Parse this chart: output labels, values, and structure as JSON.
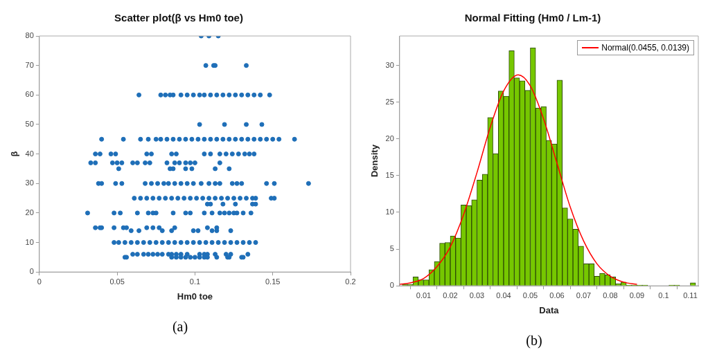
{
  "chart_data": [
    {
      "type": "scatter",
      "title": "Scatter plot(β vs Hm0 toe)",
      "xlabel": "Hm0 toe",
      "ylabel": "β",
      "annotations": [
        "(a)"
      ],
      "color": "#1f6fb8",
      "marker": "circle",
      "xlim": [
        0,
        0.2
      ],
      "xticks": [
        0,
        0.05,
        0.1,
        0.15,
        0.2
      ],
      "ylim": [
        0,
        80
      ],
      "yticks": [
        0,
        10,
        20,
        30,
        40,
        50,
        60,
        70,
        80
      ],
      "x": [
        0.104,
        0.109,
        0.115,
        0.107,
        0.112,
        0.113,
        0.133,
        0.064,
        0.078,
        0.081,
        0.084,
        0.086,
        0.091,
        0.095,
        0.099,
        0.103,
        0.106,
        0.11,
        0.114,
        0.118,
        0.122,
        0.126,
        0.13,
        0.134,
        0.138,
        0.142,
        0.148,
        0.103,
        0.119,
        0.133,
        0.143,
        0.04,
        0.054,
        0.065,
        0.07,
        0.075,
        0.078,
        0.082,
        0.086,
        0.09,
        0.094,
        0.098,
        0.102,
        0.106,
        0.11,
        0.114,
        0.118,
        0.122,
        0.126,
        0.13,
        0.134,
        0.138,
        0.142,
        0.146,
        0.15,
        0.154,
        0.164,
        0.036,
        0.039,
        0.046,
        0.049,
        0.069,
        0.072,
        0.085,
        0.088,
        0.106,
        0.11,
        0.116,
        0.12,
        0.124,
        0.128,
        0.132,
        0.135,
        0.138,
        0.033,
        0.036,
        0.047,
        0.05,
        0.053,
        0.06,
        0.063,
        0.068,
        0.071,
        0.082,
        0.087,
        0.09,
        0.094,
        0.097,
        0.1,
        0.116,
        0.051,
        0.084,
        0.086,
        0.094,
        0.098,
        0.113,
        0.122,
        0.038,
        0.04,
        0.049,
        0.053,
        0.068,
        0.072,
        0.076,
        0.08,
        0.083,
        0.087,
        0.091,
        0.095,
        0.099,
        0.104,
        0.109,
        0.113,
        0.116,
        0.124,
        0.127,
        0.13,
        0.146,
        0.151,
        0.173,
        0.061,
        0.065,
        0.069,
        0.073,
        0.077,
        0.081,
        0.085,
        0.089,
        0.093,
        0.097,
        0.101,
        0.105,
        0.109,
        0.113,
        0.117,
        0.121,
        0.125,
        0.129,
        0.133,
        0.137,
        0.139,
        0.149,
        0.151,
        0.108,
        0.11,
        0.118,
        0.126,
        0.137,
        0.139,
        0.031,
        0.048,
        0.052,
        0.063,
        0.07,
        0.073,
        0.075,
        0.086,
        0.094,
        0.097,
        0.106,
        0.111,
        0.116,
        0.119,
        0.122,
        0.125,
        0.127,
        0.131,
        0.136,
        0.036,
        0.039,
        0.04,
        0.048,
        0.054,
        0.056,
        0.069,
        0.073,
        0.077,
        0.087,
        0.108,
        0.114,
        0.059,
        0.064,
        0.079,
        0.085,
        0.099,
        0.102,
        0.111,
        0.114,
        0.123,
        0.048,
        0.051,
        0.055,
        0.059,
        0.063,
        0.067,
        0.071,
        0.075,
        0.079,
        0.083,
        0.087,
        0.091,
        0.095,
        0.099,
        0.103,
        0.107,
        0.111,
        0.115,
        0.119,
        0.123,
        0.127,
        0.131,
        0.135,
        0.139,
        0.06,
        0.063,
        0.067,
        0.07,
        0.073,
        0.076,
        0.079,
        0.083,
        0.085,
        0.088,
        0.091,
        0.095,
        0.103,
        0.106,
        0.108,
        0.113,
        0.12,
        0.123,
        0.134,
        0.055,
        0.056,
        0.085,
        0.088,
        0.091,
        0.094,
        0.097,
        0.1,
        0.103,
        0.106,
        0.108,
        0.114,
        0.121,
        0.122,
        0.13,
        0.131
      ],
      "values": [
        80,
        80,
        80,
        70,
        70,
        70,
        70,
        60,
        60,
        60,
        60,
        60,
        60,
        60,
        60,
        60,
        60,
        60,
        60,
        60,
        60,
        60,
        60,
        60,
        60,
        60,
        60,
        50,
        50,
        50,
        50,
        45,
        45,
        45,
        45,
        45,
        45,
        45,
        45,
        45,
        45,
        45,
        45,
        45,
        45,
        45,
        45,
        45,
        45,
        45,
        45,
        45,
        45,
        45,
        45,
        45,
        45,
        40,
        40,
        40,
        40,
        40,
        40,
        40,
        40,
        40,
        40,
        40,
        40,
        40,
        40,
        40,
        40,
        40,
        37,
        37,
        37,
        37,
        37,
        37,
        37,
        37,
        37,
        37,
        37,
        37,
        37,
        37,
        37,
        37,
        35,
        35,
        35,
        35,
        35,
        35,
        35,
        30,
        30,
        30,
        30,
        30,
        30,
        30,
        30,
        30,
        30,
        30,
        30,
        30,
        30,
        30,
        30,
        30,
        30,
        30,
        30,
        30,
        30,
        30,
        25,
        25,
        25,
        25,
        25,
        25,
        25,
        25,
        25,
        25,
        25,
        25,
        25,
        25,
        25,
        25,
        25,
        25,
        25,
        25,
        25,
        25,
        25,
        23,
        23,
        23,
        23,
        23,
        23,
        20,
        20,
        20,
        20,
        20,
        20,
        20,
        20,
        20,
        20,
        20,
        20,
        20,
        20,
        20,
        20,
        20,
        20,
        20,
        15,
        15,
        15,
        15,
        15,
        15,
        15,
        15,
        15,
        15,
        15,
        15,
        14,
        14,
        14,
        14,
        14,
        14,
        14,
        14,
        14,
        10,
        10,
        10,
        10,
        10,
        10,
        10,
        10,
        10,
        10,
        10,
        10,
        10,
        10,
        10,
        10,
        10,
        10,
        10,
        10,
        10,
        10,
        10,
        10,
        6,
        6,
        6,
        6,
        6,
        6,
        6,
        6,
        6,
        6,
        6,
        6,
        6,
        6,
        6,
        6,
        6,
        6,
        6,
        5,
        5,
        5,
        5,
        5,
        5,
        5,
        5,
        5,
        5,
        5,
        5,
        5,
        5,
        5,
        5
      ]
    },
    {
      "type": "histogram",
      "title": "Normal Fitting (Hm0 / Lm-1)",
      "xlabel": "Data",
      "ylabel": "Density",
      "annotations": [
        "(b)"
      ],
      "color": "#76c700",
      "legend": "top right",
      "xlim": [
        0.001,
        0.113
      ],
      "xticks": [
        0.01,
        0.02,
        0.03,
        0.04,
        0.05,
        0.06,
        0.07,
        0.08,
        0.09,
        0.1,
        0.11
      ],
      "ylim": [
        0,
        34
      ],
      "yticks": [
        0,
        5,
        10,
        15,
        20,
        25,
        30
      ],
      "bins": [
        0.002,
        0.004,
        0.006,
        0.008,
        0.01,
        0.012,
        0.014,
        0.016,
        0.018,
        0.02,
        0.022,
        0.024,
        0.026,
        0.028,
        0.03,
        0.032,
        0.034,
        0.036,
        0.038,
        0.04,
        0.042,
        0.044,
        0.046,
        0.048,
        0.05,
        0.052,
        0.054,
        0.056,
        0.058,
        0.06,
        0.062,
        0.064,
        0.066,
        0.068,
        0.07,
        0.072,
        0.074,
        0.076,
        0.078,
        0.08,
        0.082,
        0.084,
        0.086,
        0.088,
        0.09,
        0.092,
        0.094,
        0.096,
        0.098,
        0.1,
        0.102,
        0.104,
        0.106,
        0.108,
        0.11,
        0.112
      ],
      "values": [
        0.2,
        0.2,
        1.2,
        0.8,
        0.8,
        2.2,
        3.3,
        5.8,
        5.9,
        6.8,
        6.5,
        11.0,
        10.9,
        11.7,
        14.4,
        15.2,
        22.9,
        18.0,
        26.5,
        25.8,
        32.0,
        28.3,
        27.9,
        26.6,
        32.4,
        24.2,
        24.4,
        19.8,
        19.3,
        28.0,
        10.6,
        9.1,
        7.7,
        5.4,
        3.0,
        3.0,
        1.3,
        1.7,
        1.5,
        1.2,
        0.3,
        0.5,
        0.1,
        0.1,
        0.1,
        0.1,
        0,
        0,
        0,
        0,
        0.1,
        0.1,
        0,
        0,
        0.4
      ],
      "series": [
        {
          "type": "line",
          "name": "Normal(0.0455, 0.0139)",
          "color": "#ff0000",
          "x": [
            0.001,
            0.005,
            0.01,
            0.015,
            0.02,
            0.025,
            0.03,
            0.035,
            0.04,
            0.0455,
            0.05,
            0.055,
            0.06,
            0.065,
            0.07,
            0.075,
            0.08,
            0.085,
            0.09
          ],
          "values": [
            0.2,
            0.4,
            1.0,
            2.6,
            5.3,
            9.7,
            15.4,
            21.6,
            26.5,
            28.7,
            27.2,
            22.7,
            16.7,
            10.7,
            6.1,
            3.0,
            1.3,
            0.5,
            0.2
          ]
        }
      ]
    }
  ]
}
